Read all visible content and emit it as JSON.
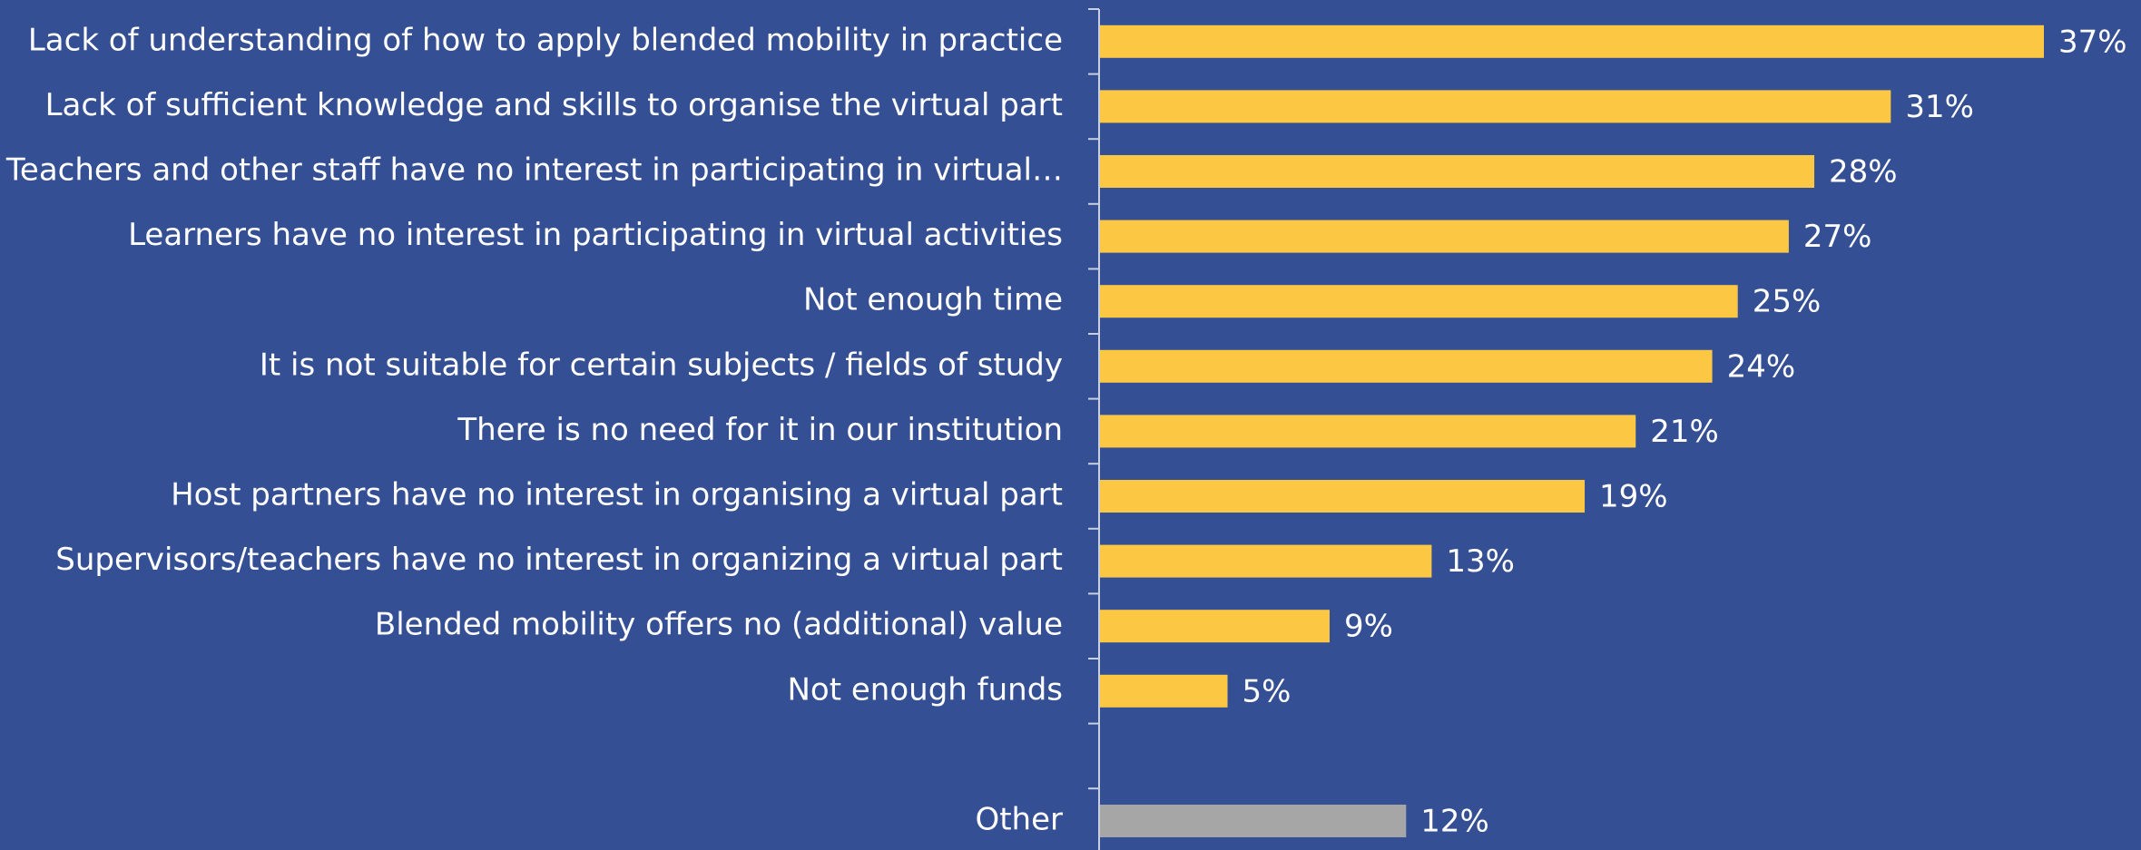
{
  "chart_data": {
    "type": "hbar",
    "categories": [
      "Lack of understanding of how to apply blended mobility in practice",
      "Lack of sufficient knowledge and skills to organise the virtual part",
      "Teachers and other staff have no interest in participating in virtual…",
      "Learners have no interest in participating in virtual activities",
      "Not enough time",
      "It is not suitable for certain subjects / fields of study",
      "There is no need for it in our institution",
      "Host partners have no interest in organising a virtual part",
      "Supervisors/teachers have no interest in organizing a virtual part",
      "Blended mobility offers no (additional) value",
      "Not enough funds",
      null,
      "Other"
    ],
    "values": [
      37,
      31,
      28,
      27,
      25,
      24,
      21,
      19,
      13,
      9,
      5,
      null,
      12
    ],
    "value_labels": [
      "37%",
      "31%",
      "28%",
      "27%",
      "25%",
      "24%",
      "21%",
      "19%",
      "13%",
      "9%",
      "5%",
      null,
      "12%"
    ],
    "colors": [
      "#fcc844",
      "#fcc844",
      "#fcc844",
      "#fcc844",
      "#fcc844",
      "#fcc844",
      "#fcc844",
      "#fcc844",
      "#fcc844",
      "#fcc844",
      "#fcc844",
      null,
      "#a6a6a6"
    ]
  }
}
